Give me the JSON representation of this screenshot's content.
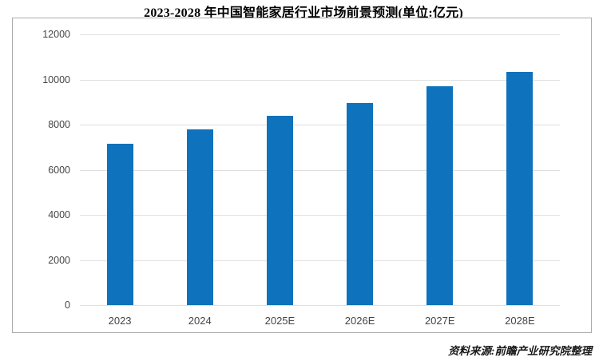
{
  "title": "2023-2028 年中国智能家居行业市场前景预测(单位:亿元)",
  "source_note": "资料来源:前瞻产业研究院整理",
  "colors": {
    "bar": "#0e72bc",
    "gridline": "#e0e0e0",
    "frame_border": "#ababab",
    "tick_text": "#454545",
    "title_text": "#000000"
  },
  "chart_data": {
    "type": "bar",
    "title": "2023-2028 年中国智能家居行业市场前景预测(单位:亿元)",
    "unit": "亿元",
    "categories": [
      "2023",
      "2024",
      "2025E",
      "2026E",
      "2027E",
      "2028E"
    ],
    "values": [
      7150,
      7800,
      8400,
      8950,
      9700,
      10350
    ],
    "xlabel": "",
    "ylabel": "",
    "ylim": [
      0,
      12000
    ],
    "yticks": [
      0,
      2000,
      4000,
      6000,
      8000,
      10000,
      12000
    ],
    "grid": true,
    "legend_position": "none"
  }
}
